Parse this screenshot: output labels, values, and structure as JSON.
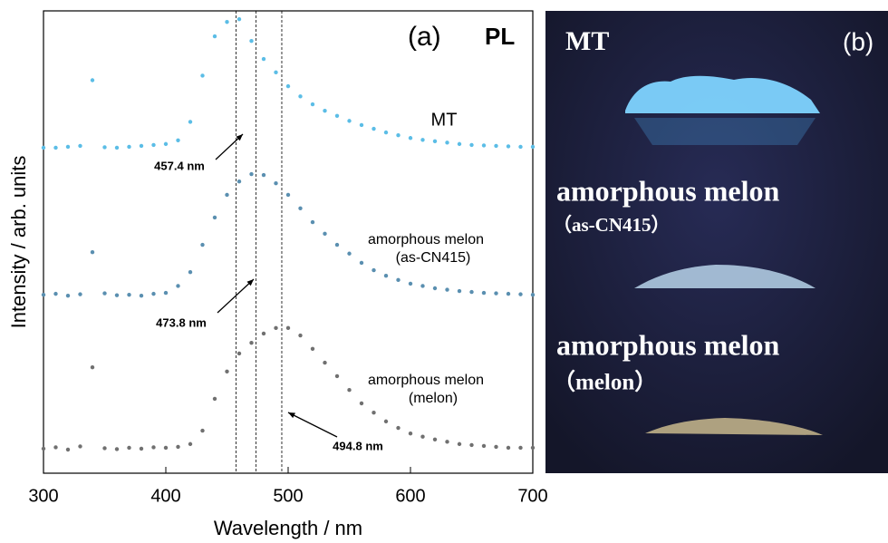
{
  "chart_data": {
    "type": "scatter",
    "panel_label": "(a)",
    "title": "PL",
    "x_label": "Wavelength / nm",
    "y_label": "Intensity / arb. units",
    "x": [
      300,
      310,
      320,
      330,
      340,
      350,
      360,
      370,
      380,
      390,
      400,
      410,
      420,
      430,
      440,
      450,
      460,
      470,
      480,
      490,
      500,
      510,
      520,
      530,
      540,
      550,
      560,
      570,
      580,
      590,
      600,
      610,
      620,
      630,
      640,
      650,
      660,
      670,
      680,
      690,
      700
    ],
    "series": [
      {
        "name": "MT",
        "color": "#5bbde6",
        "values": [
          70.4,
          70.4,
          70.6,
          70.8,
          85,
          70.5,
          70.4,
          70.6,
          70.8,
          71,
          71.2,
          72,
          76,
          86,
          94.5,
          97.6,
          98.2,
          93.5,
          89.6,
          86.7,
          83.7,
          81.5,
          79.8,
          78.4,
          77.3,
          76.2,
          75.3,
          74.5,
          73.7,
          73.1,
          72.5,
          72.1,
          71.8,
          71.5,
          71.2,
          71,
          70.9,
          70.8,
          70.7,
          70.6,
          70.6
        ]
      },
      {
        "name": "amorphous melon",
        "sample": "(as-CN415)",
        "color": "#5a8fb0",
        "values": [
          38.6,
          38.8,
          38.4,
          38.7,
          47.8,
          38.9,
          38.5,
          38.6,
          38.4,
          38.8,
          39,
          40.5,
          43.5,
          49.4,
          55.3,
          60.2,
          63.1,
          64.7,
          64.5,
          62.7,
          60.2,
          57.3,
          54.3,
          51.8,
          49.4,
          47.5,
          45.5,
          43.9,
          42.7,
          41.8,
          41,
          40.5,
          40,
          39.7,
          39.4,
          39.2,
          39,
          38.9,
          38.8,
          38.7,
          38.6
        ]
      },
      {
        "name": "amorphous melon",
        "sample": "(melon)",
        "color": "#707070",
        "values": [
          5.3,
          5.6,
          5.1,
          5.8,
          22.9,
          5.4,
          5.2,
          5.5,
          5.3,
          5.6,
          5.5,
          5.7,
          6.3,
          9.2,
          16.1,
          22,
          25.9,
          28.2,
          30.2,
          31.4,
          31.4,
          29.8,
          26.9,
          23.9,
          21,
          18,
          15.1,
          13.1,
          11.2,
          9.8,
          8.6,
          7.9,
          7.3,
          6.8,
          6.3,
          6.1,
          5.9,
          5.7,
          5.5,
          5.5,
          5.5
        ]
      }
    ],
    "peaks": [
      {
        "value": 457.4,
        "label": "457.4 nm"
      },
      {
        "value": 473.8,
        "label": "473.8 nm"
      },
      {
        "value": 494.8,
        "label": "494.8 nm"
      }
    ],
    "xlim": [
      300,
      700
    ],
    "xticks": [
      300,
      400,
      500,
      600,
      700
    ],
    "ylim": [
      0,
      100
    ]
  },
  "photo": {
    "panel_label": "(b)",
    "captions": [
      "MT",
      "amorphous melon",
      "（as-CN415）",
      "amorphous melon",
      "（melon）"
    ]
  }
}
